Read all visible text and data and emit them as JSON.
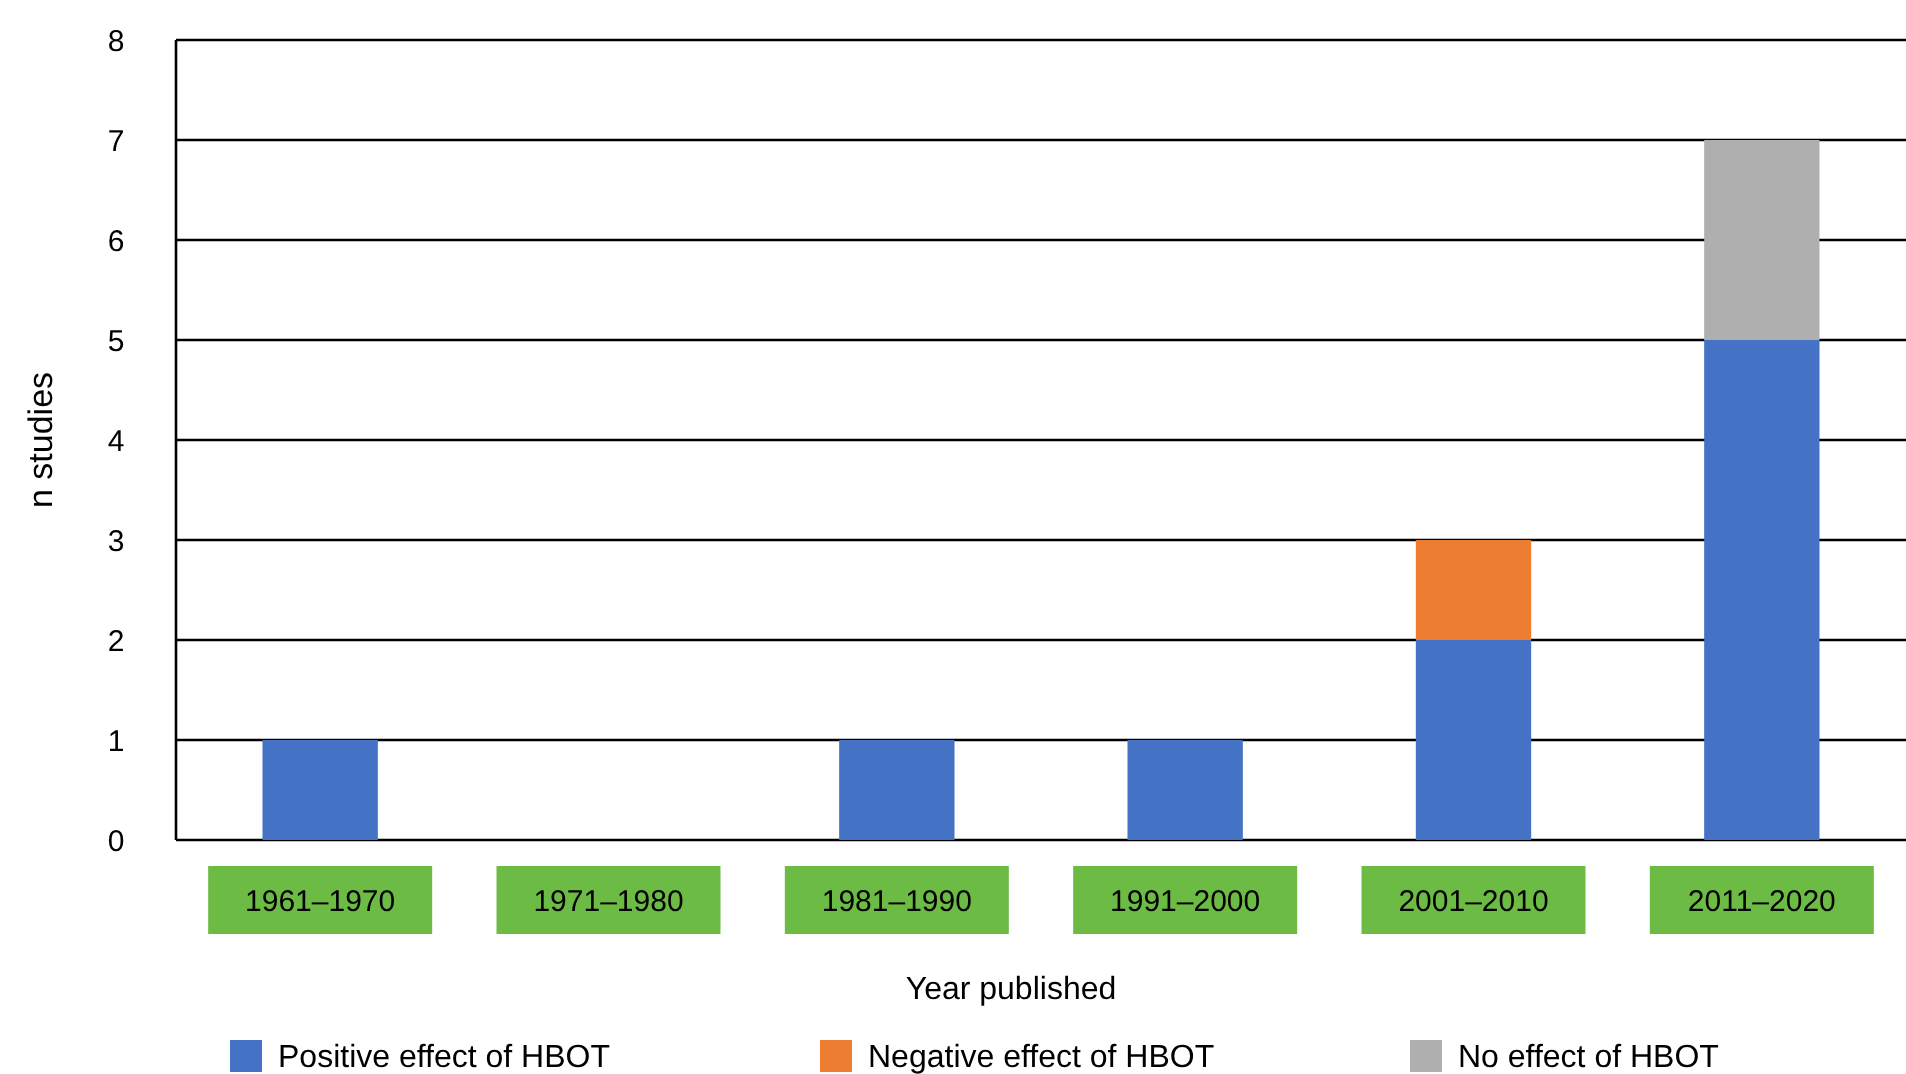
{
  "chart_data": {
    "type": "bar",
    "stacked": true,
    "xlabel": "Year published",
    "ylabel": "n studies",
    "categories": [
      "1961–1970",
      "1971–1980",
      "1981–1990",
      "1991–2000",
      "2001–2010",
      "2011–2020"
    ],
    "series": [
      {
        "name": "Positive effect of HBOT",
        "color": "#4472c4",
        "values": [
          1,
          0,
          1,
          1,
          2,
          5
        ]
      },
      {
        "name": "Negative effect of HBOT",
        "color": "#ed7d31",
        "values": [
          0,
          0,
          0,
          0,
          1,
          0
        ]
      },
      {
        "name": "No effect of HBOT",
        "color": "#afafaf",
        "values": [
          0,
          0,
          0,
          0,
          0,
          2
        ]
      }
    ],
    "ylim": [
      0,
      8
    ],
    "yticks": [
      0,
      1,
      2,
      3,
      4,
      5,
      6,
      7,
      8
    ],
    "grid": "y",
    "legend": "bottom"
  }
}
